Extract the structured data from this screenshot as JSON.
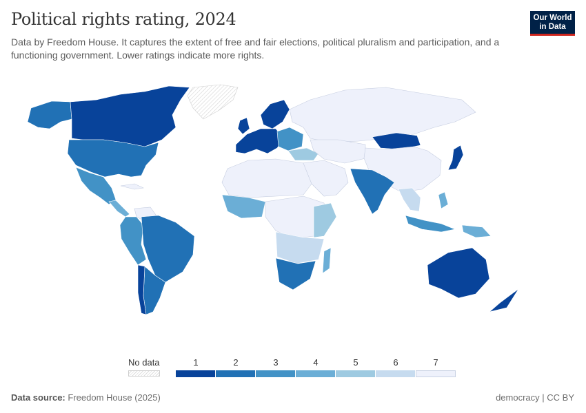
{
  "title": "Political rights rating, 2024",
  "subtitle": "Data by Freedom House. It captures the extent of free and fair elections, political pluralism and participation, and a functioning government. Lower ratings indicate more rights.",
  "logo": {
    "line1": "Our World",
    "line2": "in Data"
  },
  "legend": {
    "no_data_label": "No data",
    "ticks": [
      "1",
      "2",
      "3",
      "4",
      "5",
      "6",
      "7"
    ],
    "colors": [
      "#08439a",
      "#2171b5",
      "#4292c6",
      "#6baed6",
      "#9ecae1",
      "#c6dbef",
      "#eef1fb"
    ]
  },
  "footer": {
    "source_label": "Data source:",
    "source_value": "Freedom House (2025)",
    "right": "democracy | CC BY"
  },
  "map_data": {
    "type": "choropleth",
    "scale": "Political rights rating 1–7 (lower = more rights)",
    "regions": [
      {
        "name": "Canada",
        "rating": 1
      },
      {
        "name": "United States",
        "rating": 2
      },
      {
        "name": "Mexico",
        "rating": 3
      },
      {
        "name": "Brazil",
        "rating": 2
      },
      {
        "name": "Argentina",
        "rating": 2
      },
      {
        "name": "Chile",
        "rating": 1
      },
      {
        "name": "Western Europe",
        "rating": 1
      },
      {
        "name": "Russia",
        "rating": 7
      },
      {
        "name": "China",
        "rating": 7
      },
      {
        "name": "Mongolia",
        "rating": 1
      },
      {
        "name": "India",
        "rating": 2
      },
      {
        "name": "Australia",
        "rating": 1
      },
      {
        "name": "Japan",
        "rating": 1
      },
      {
        "name": "South Africa",
        "rating": 2
      },
      {
        "name": "Greenland",
        "rating": null
      }
    ]
  }
}
